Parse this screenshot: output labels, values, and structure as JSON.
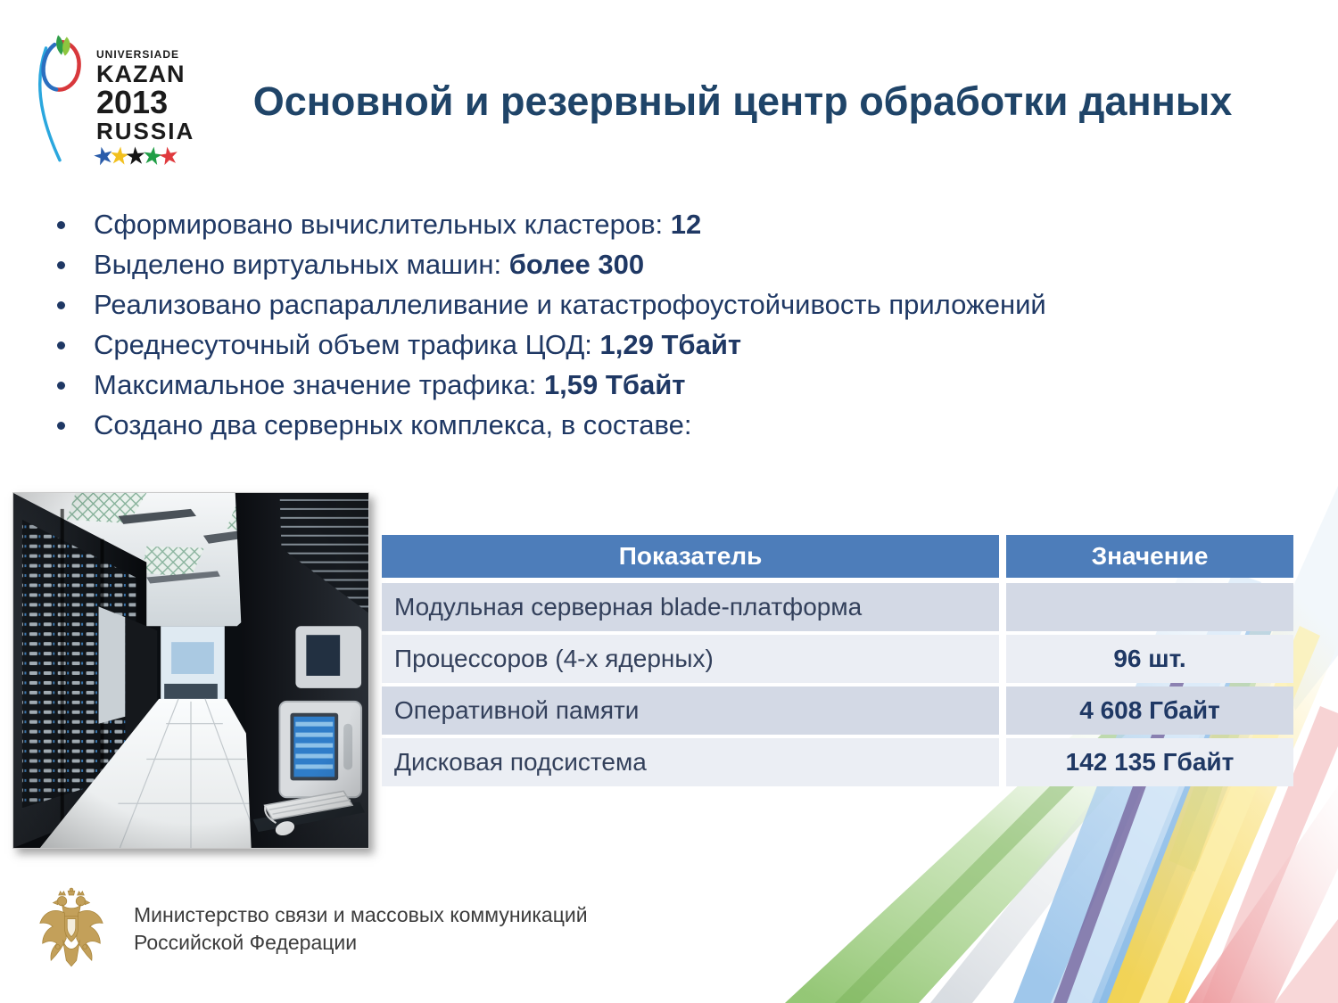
{
  "logo": {
    "line1": "UNIVERSIADE",
    "line2": "KAZAN",
    "line3": "2013",
    "line4": "RUSSIA",
    "star_glyph": "★",
    "star_colors": [
      "#2A5CAA",
      "#F2C01E",
      "#141414",
      "#209E46",
      "#E03A3E"
    ]
  },
  "header": {
    "title": "Основной и резервный центр обработки данных"
  },
  "bullets": [
    {
      "text": "Сформировано вычислительных кластеров: ",
      "bold": "12"
    },
    {
      "text": "Выделено виртуальных машин: ",
      "bold": "более 300"
    },
    {
      "text": "Реализовано распараллеливание и катастрофоустойчивость приложений",
      "bold": ""
    },
    {
      "text": "Среднесуточный объем трафика ЦОД: ",
      "bold": "1,29 Тбайт"
    },
    {
      "text": "Максимальное значение трафика: ",
      "bold": "1,59 Тбайт"
    },
    {
      "text": "Создано два серверных комплекса, в составе:",
      "bold": ""
    }
  ],
  "table": {
    "headers": [
      "Показатель",
      "Значение"
    ],
    "rows": [
      {
        "label": "Модульная серверная blade-платформа",
        "value": ""
      },
      {
        "label": "Процессоров (4-х ядерных)",
        "value": "96 шт."
      },
      {
        "label": "Оперативной памяти",
        "value": "4 608 Гбайт"
      },
      {
        "label": "Дисковая подсистема",
        "value": "142 135 Гбайт"
      }
    ]
  },
  "footer": {
    "ministry_line1": "Министерство связи и массовых коммуникаций",
    "ministry_line2": "Российской Федерации"
  },
  "colors": {
    "title_navy": "#1F4468",
    "bullet_navy": "#1F3864",
    "table_header_blue": "#4D7DBA",
    "row_band_dark": "#D3D9E5",
    "row_band_light": "#EBEEF4",
    "ministry_gold": "#C3A05A",
    "ribbon_green": "#8FC46F",
    "ribbon_blue": "#9AC4EA",
    "ribbon_yellow": "#F6D44F",
    "ribbon_pink": "#EC9599"
  }
}
